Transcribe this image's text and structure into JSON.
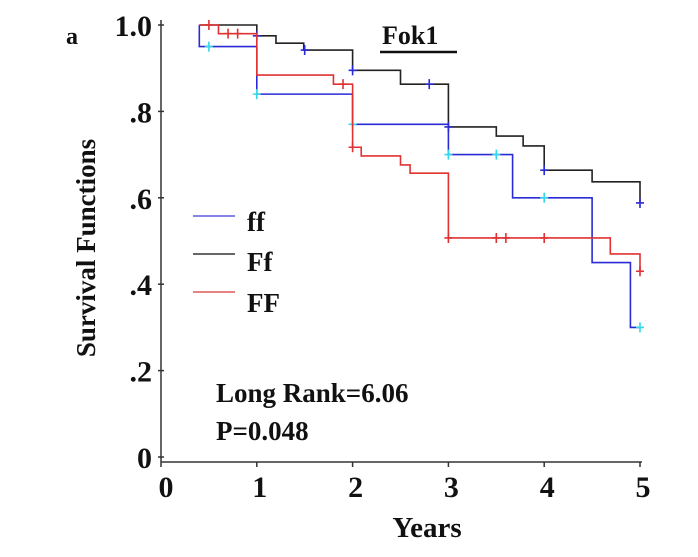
{
  "chart_data": {
    "type": "line",
    "subtype": "kaplan-meier step",
    "panel_label": "a",
    "title": "Fok1",
    "xlabel": "Years",
    "ylabel": "Survival Functions",
    "xlim": [
      0,
      5
    ],
    "ylim": [
      0,
      1.0
    ],
    "x_ticks": [
      0,
      1,
      2,
      3,
      4,
      5
    ],
    "x_tick_labels": [
      "0",
      "1",
      "2",
      "3",
      "4",
      "5"
    ],
    "y_ticks": [
      0,
      0.2,
      0.4,
      0.6,
      0.8,
      1.0
    ],
    "y_tick_labels": [
      "0",
      ".2",
      ".4",
      ".6",
      ".8",
      "1.0"
    ],
    "grid": false,
    "legend_position": "middle-left",
    "annotations": [
      "Long Rank=6.06",
      "P=0.048"
    ],
    "series": [
      {
        "name": "ff",
        "color": "#2b2bd6",
        "censor_color": "#35d8e8",
        "steps": [
          [
            0.4,
            1.0
          ],
          [
            0.4,
            0.95
          ],
          [
            1.0,
            0.84
          ],
          [
            2.0,
            0.77
          ],
          [
            3.0,
            0.7
          ],
          [
            3.67,
            0.6
          ],
          [
            4.5,
            0.45
          ],
          [
            4.9,
            0.3
          ],
          [
            5.0,
            0.3
          ]
        ],
        "censored": [
          [
            0.5,
            0.95
          ],
          [
            1.0,
            0.84
          ],
          [
            2.0,
            0.77
          ],
          [
            3.0,
            0.7
          ],
          [
            3.5,
            0.7
          ],
          [
            4.0,
            0.6
          ],
          [
            5.0,
            0.3
          ]
        ]
      },
      {
        "name": "Ff",
        "color": "#222222",
        "censor_color": "#2b2bd6",
        "steps": [
          [
            0.4,
            1.0
          ],
          [
            1.0,
            0.975
          ],
          [
            1.2,
            0.958
          ],
          [
            1.49,
            0.942
          ],
          [
            2.0,
            0.895
          ],
          [
            2.5,
            0.863
          ],
          [
            3.0,
            0.764
          ],
          [
            3.5,
            0.743
          ],
          [
            3.78,
            0.72
          ],
          [
            4.0,
            0.664
          ],
          [
            4.5,
            0.637
          ],
          [
            5.0,
            0.588
          ]
        ],
        "censored": [
          [
            1.0,
            0.975
          ],
          [
            1.5,
            0.942
          ],
          [
            2.0,
            0.895
          ],
          [
            2.8,
            0.863
          ],
          [
            3.0,
            0.764
          ],
          [
            4.0,
            0.664
          ],
          [
            5.0,
            0.588
          ]
        ]
      },
      {
        "name": "FF",
        "color": "#e03232",
        "censor_color": "#e03232",
        "steps": [
          [
            0.4,
            1.0
          ],
          [
            0.6,
            0.98
          ],
          [
            1.0,
            0.884
          ],
          [
            1.8,
            0.863
          ],
          [
            2.0,
            0.717
          ],
          [
            2.09,
            0.697
          ],
          [
            2.5,
            0.676
          ],
          [
            2.6,
            0.657
          ],
          [
            3.0,
            0.507
          ],
          [
            4.69,
            0.47
          ],
          [
            5.0,
            0.43
          ]
        ],
        "censored": [
          [
            0.5,
            1.0
          ],
          [
            0.7,
            0.98
          ],
          [
            0.8,
            0.98
          ],
          [
            1.9,
            0.863
          ],
          [
            2.0,
            0.717
          ],
          [
            3.0,
            0.507
          ],
          [
            3.5,
            0.507
          ],
          [
            3.6,
            0.507
          ],
          [
            4.0,
            0.507
          ],
          [
            5.0,
            0.43
          ]
        ]
      }
    ]
  }
}
